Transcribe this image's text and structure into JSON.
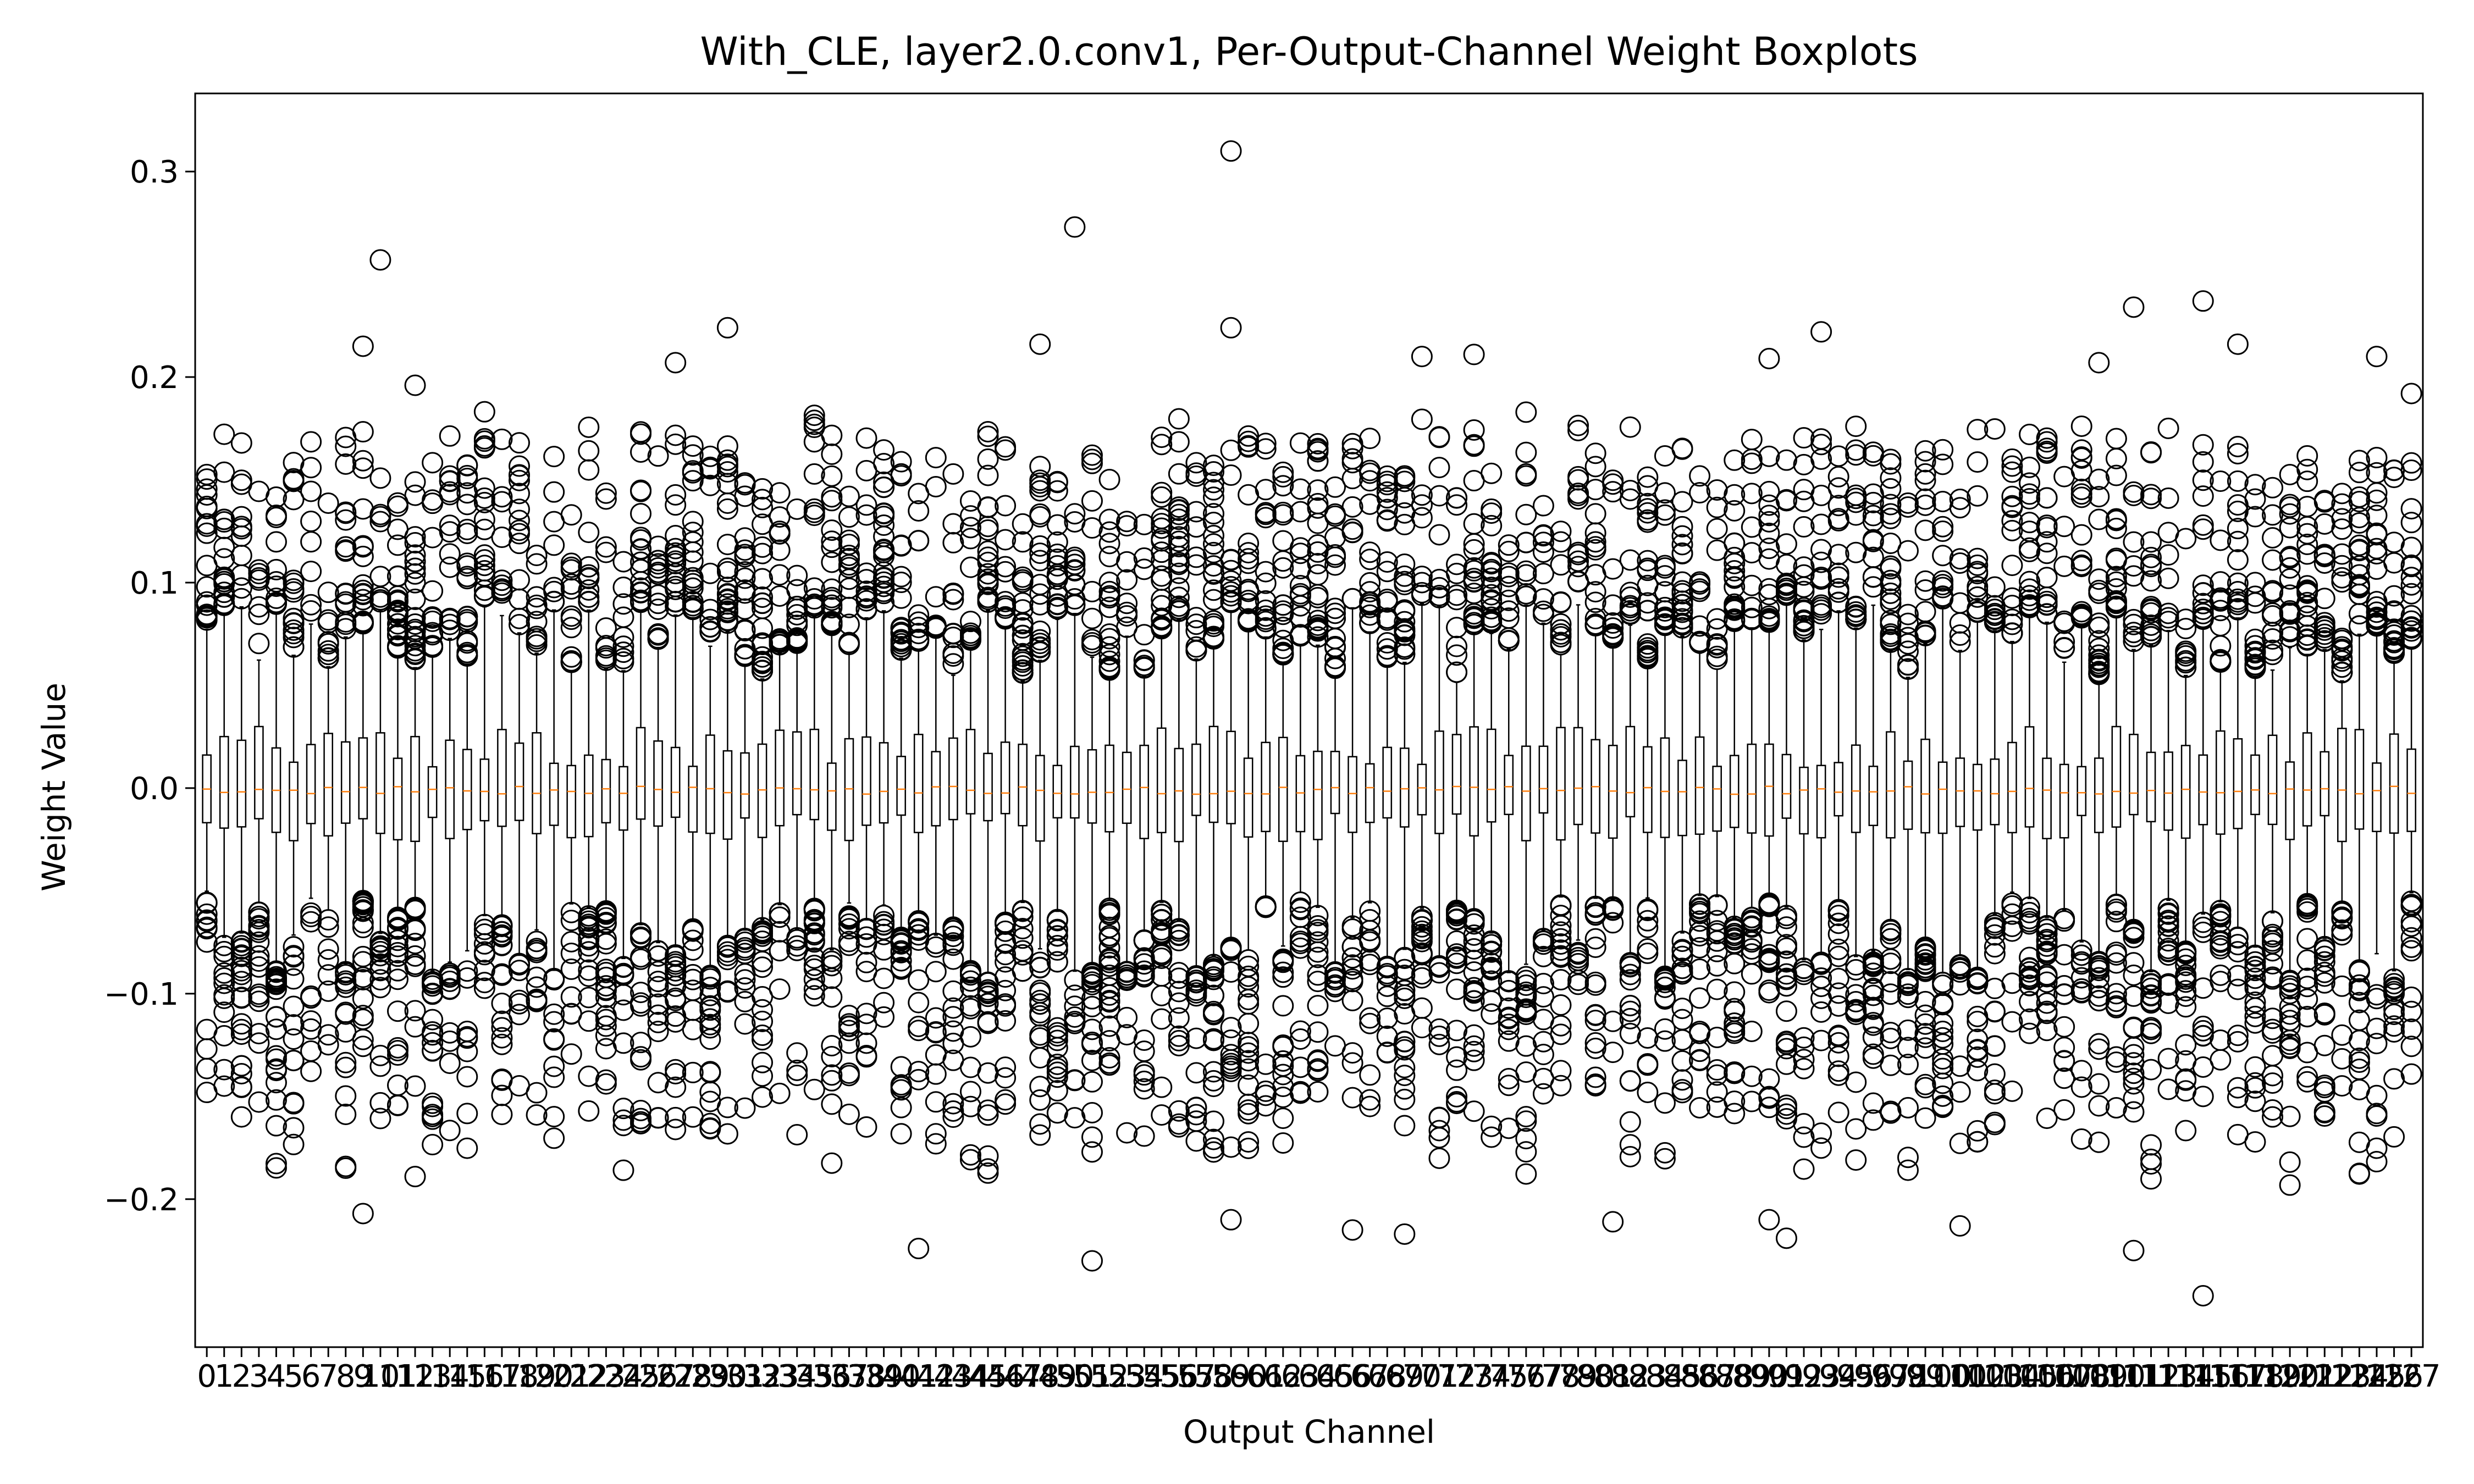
{
  "chart_data": {
    "type": "boxplot",
    "title": "With_CLE, layer2.0.conv1, Per-Output-Channel Weight Boxplots",
    "xlabel": "Output Channel",
    "ylabel": "Weight Value",
    "ylim": [
      -0.272,
      0.338
    ],
    "yticks": [
      -0.2,
      -0.1,
      0.0,
      0.1,
      0.2,
      0.3
    ],
    "ytick_labels": [
      "−0.2",
      "−0.1",
      "0.0",
      "0.1",
      "0.2",
      "0.3"
    ],
    "n_channels": 128,
    "x_categories_first_last": [
      0,
      127
    ],
    "median_approx": -0.001,
    "q1_range": [
      -0.026,
      -0.012
    ],
    "q3_range": [
      0.01,
      0.03
    ],
    "lower_whisker_range": [
      -0.09,
      -0.05
    ],
    "upper_whisker_range": [
      0.05,
      0.09
    ],
    "grid": false,
    "legend": "none",
    "colors": {
      "box": "#000000",
      "median": "#ff7f0e",
      "flier": "#000000",
      "background": "#ffffff"
    },
    "notable_outliers": [
      {
        "channel": 9,
        "value": 0.215
      },
      {
        "channel": 10,
        "value": 0.257
      },
      {
        "channel": 9,
        "value": -0.207
      },
      {
        "channel": 12,
        "value": 0.196
      },
      {
        "channel": 12,
        "value": -0.189
      },
      {
        "channel": 27,
        "value": 0.207
      },
      {
        "channel": 30,
        "value": 0.224
      },
      {
        "channel": 41,
        "value": -0.224
      },
      {
        "channel": 48,
        "value": 0.216
      },
      {
        "channel": 50,
        "value": 0.273
      },
      {
        "channel": 51,
        "value": -0.23
      },
      {
        "channel": 59,
        "value": 0.31
      },
      {
        "channel": 59,
        "value": 0.224
      },
      {
        "channel": 59,
        "value": -0.21
      },
      {
        "channel": 66,
        "value": -0.215
      },
      {
        "channel": 69,
        "value": -0.217
      },
      {
        "channel": 70,
        "value": 0.21
      },
      {
        "channel": 73,
        "value": 0.211
      },
      {
        "channel": 81,
        "value": -0.211
      },
      {
        "channel": 90,
        "value": 0.209
      },
      {
        "channel": 90,
        "value": -0.21
      },
      {
        "channel": 91,
        "value": -0.219
      },
      {
        "channel": 93,
        "value": 0.222
      },
      {
        "channel": 101,
        "value": -0.213
      },
      {
        "channel": 109,
        "value": 0.207
      },
      {
        "channel": 111,
        "value": 0.234
      },
      {
        "channel": 111,
        "value": -0.225
      },
      {
        "channel": 115,
        "value": 0.237
      },
      {
        "channel": 115,
        "value": -0.247
      },
      {
        "channel": 117,
        "value": 0.216
      },
      {
        "channel": 125,
        "value": 0.21
      },
      {
        "channel": 127,
        "value": 0.192
      }
    ]
  }
}
